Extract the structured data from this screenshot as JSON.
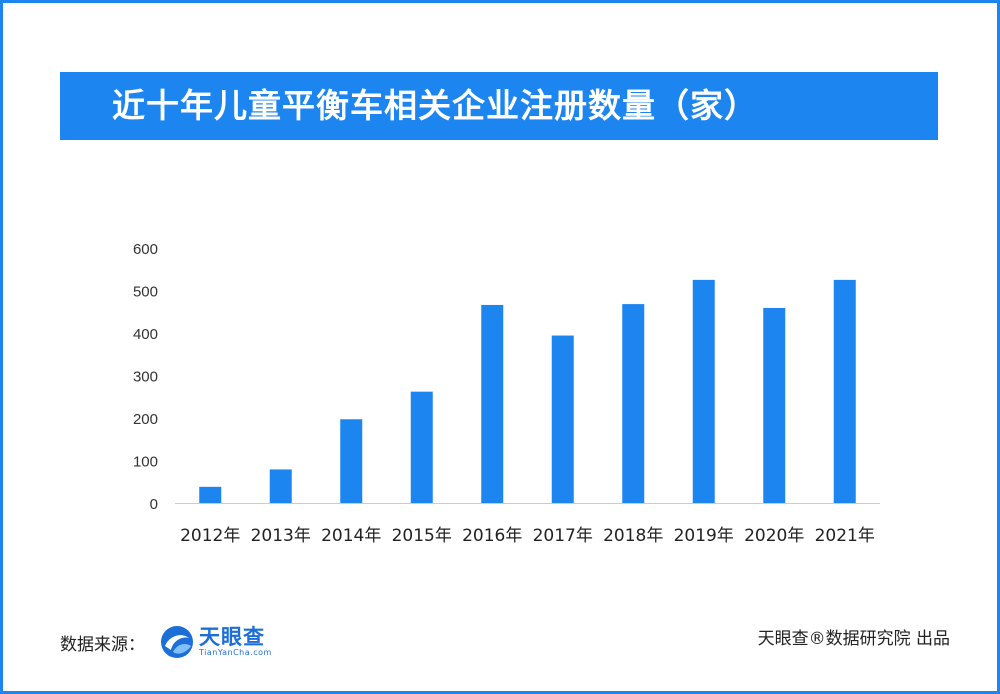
{
  "header": {
    "title": "近十年儿童平衡车相关企业注册数量（家）"
  },
  "chart_data": {
    "type": "bar",
    "categories": [
      "2012年",
      "2013年",
      "2014年",
      "2015年",
      "2016年",
      "2017年",
      "2018年",
      "2019年",
      "2020年",
      "2021年"
    ],
    "values": [
      38,
      79,
      197,
      262,
      466,
      394,
      468,
      525,
      459,
      525
    ],
    "ylim": [
      0,
      600
    ],
    "yticks": [
      "0",
      "100",
      "200",
      "300",
      "400",
      "500",
      "600"
    ],
    "grid": false,
    "color": "#1d85f0"
  },
  "footer": {
    "source_label": "数据来源：",
    "logo_name": "天眼查",
    "logo_url": "TianYanCha.com",
    "credit": "天眼查®数据研究院 出品"
  }
}
